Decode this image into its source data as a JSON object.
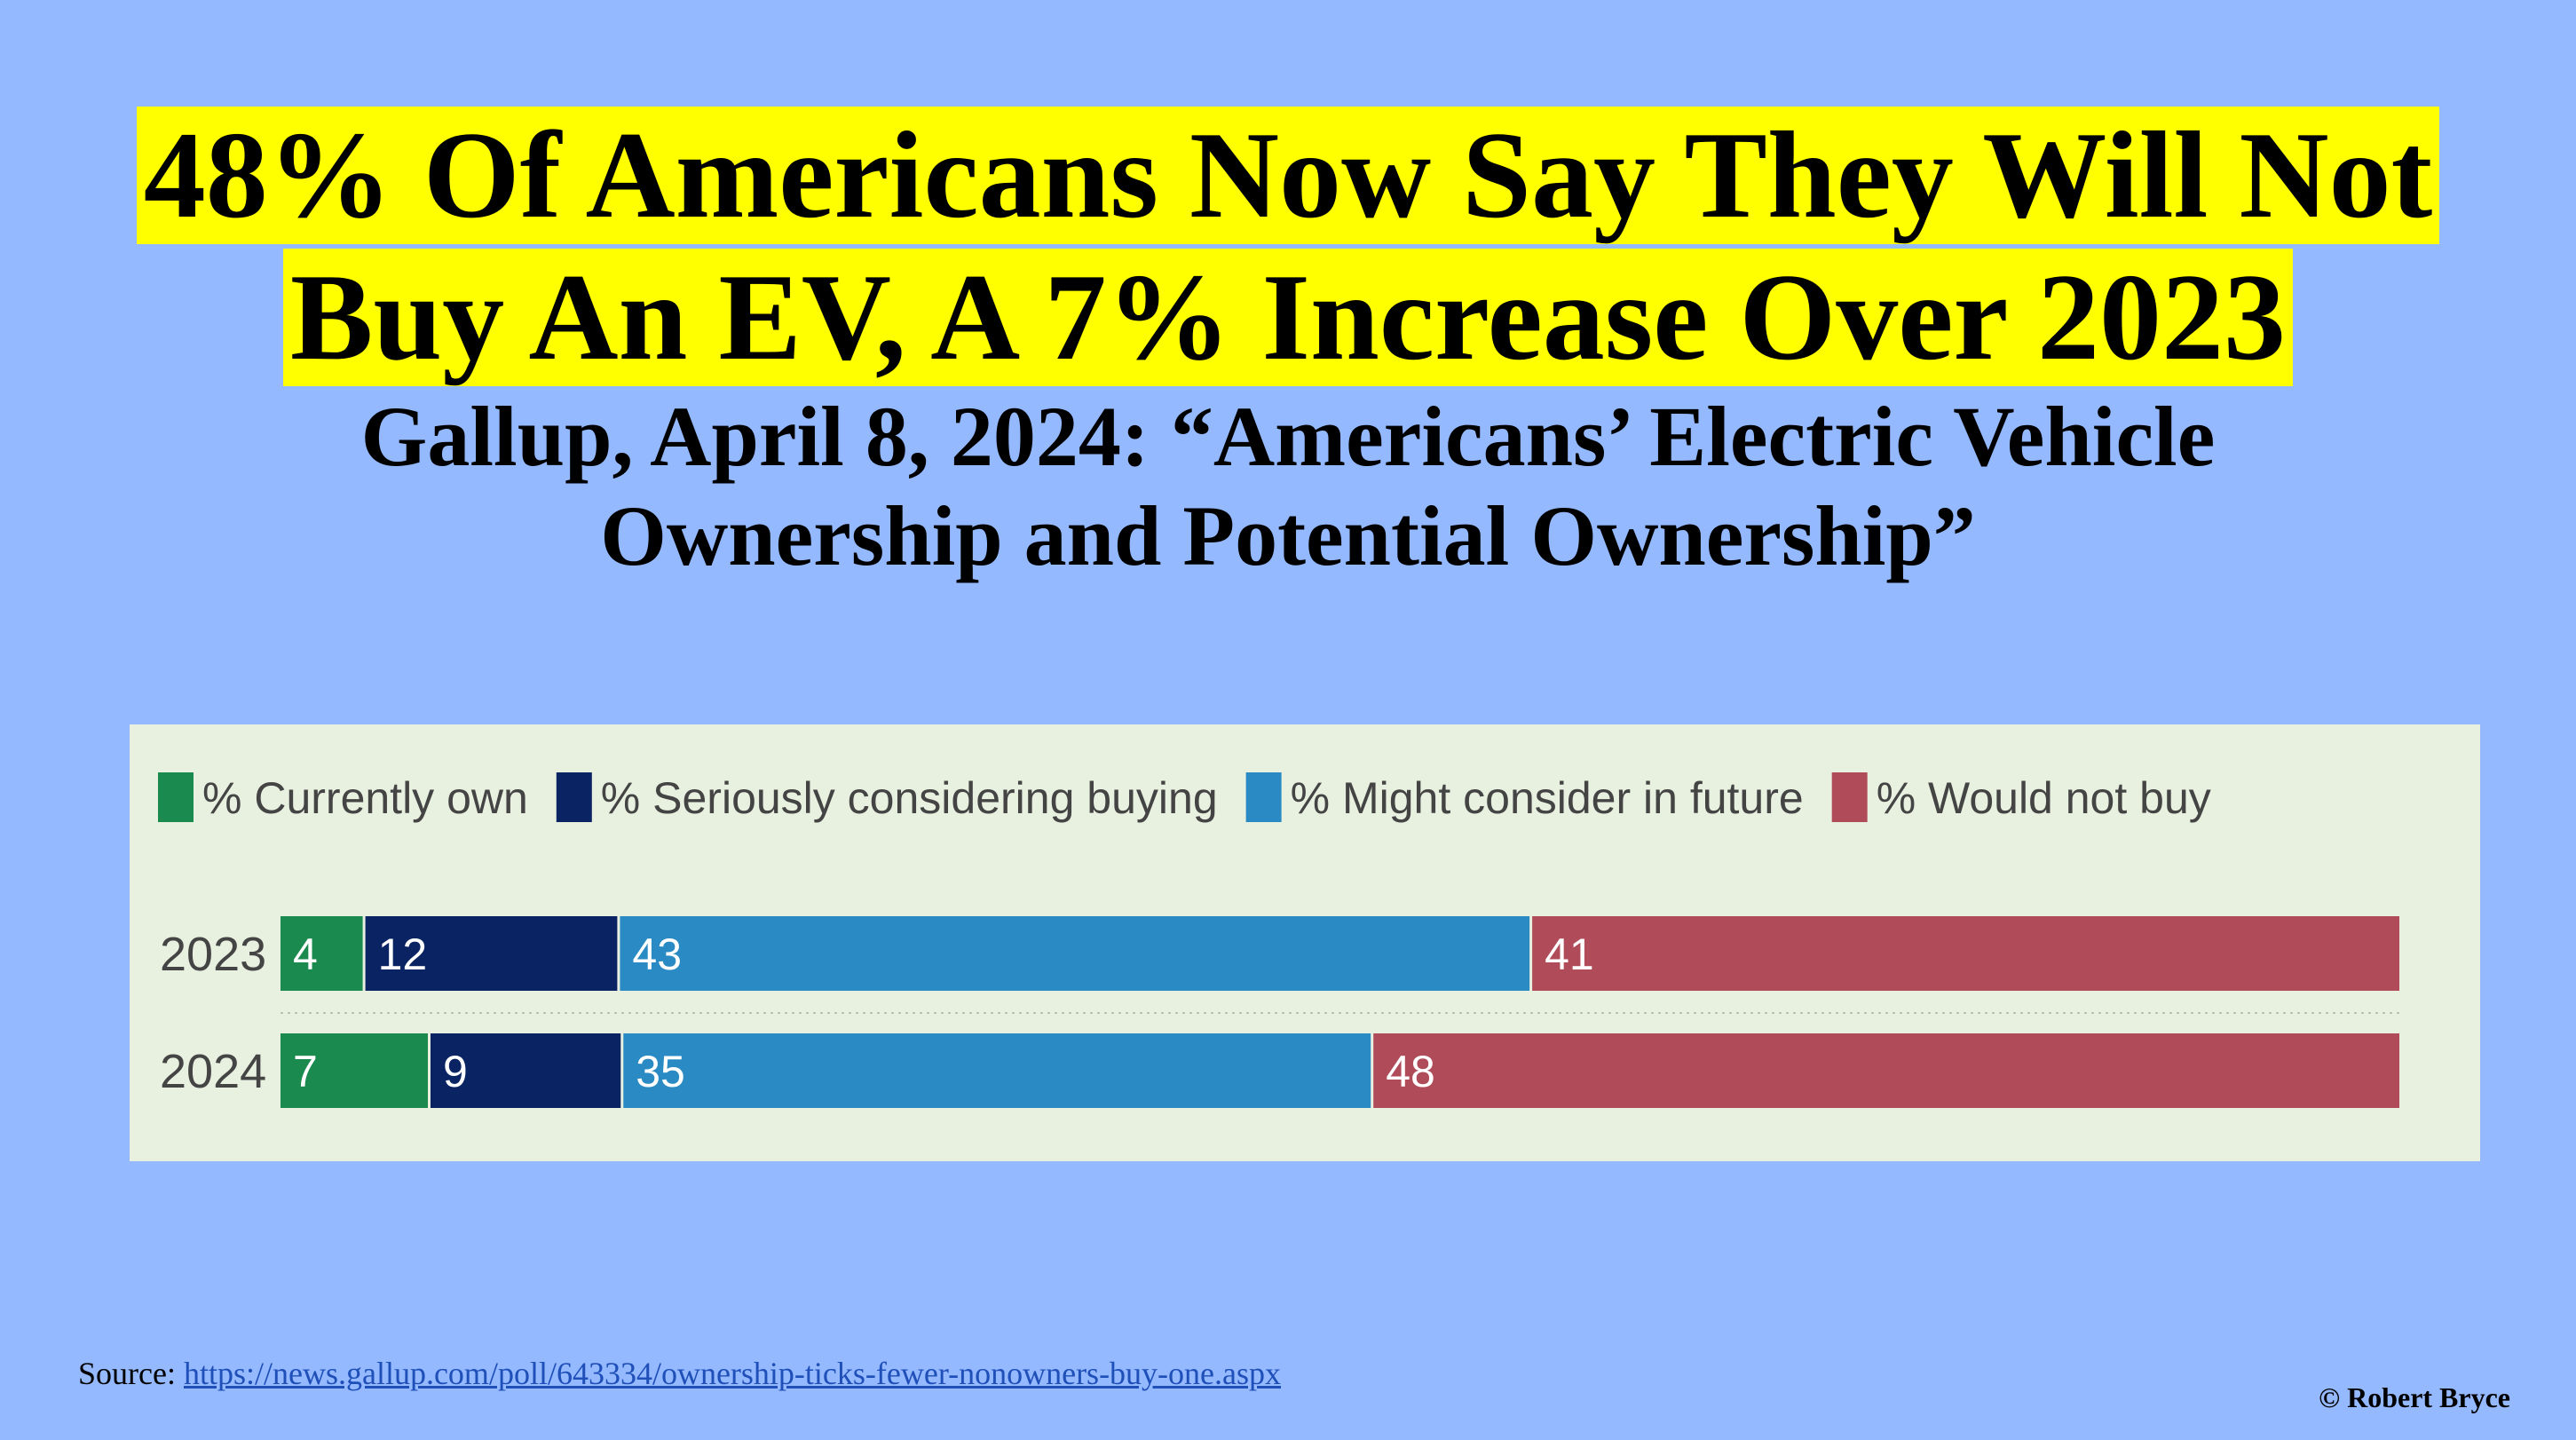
{
  "headline": {
    "line1": "48% Of Americans Now Say They Will Not",
    "line2": "Buy An EV, A 7% Increase Over 2023"
  },
  "subtitle": {
    "line1": "Gallup, April 8, 2024: “Americans’ Electric Vehicle",
    "line2": "Ownership and Potential Ownership”"
  },
  "chart_data": {
    "type": "bar",
    "orientation": "horizontal",
    "stacked": true,
    "legend_position": "top-left",
    "categories": [
      "2023",
      "2024"
    ],
    "series": [
      {
        "name": "% Currently own",
        "values": [
          4,
          7
        ],
        "color": "#1a8a4e"
      },
      {
        "name": "% Seriously considering buying",
        "values": [
          12,
          9
        ],
        "color": "#0a2463"
      },
      {
        "name": "% Might consider in future",
        "values": [
          43,
          35
        ],
        "color": "#2a8bc4"
      },
      {
        "name": "% Would not buy",
        "values": [
          41,
          48
        ],
        "color": "#b04c5a"
      }
    ]
  },
  "source": {
    "label": "Source: ",
    "url": "https://news.gallup.com/poll/643334/ownership-ticks-fewer-nonowners-buy-one.aspx"
  },
  "copyright": "© Robert Bryce"
}
